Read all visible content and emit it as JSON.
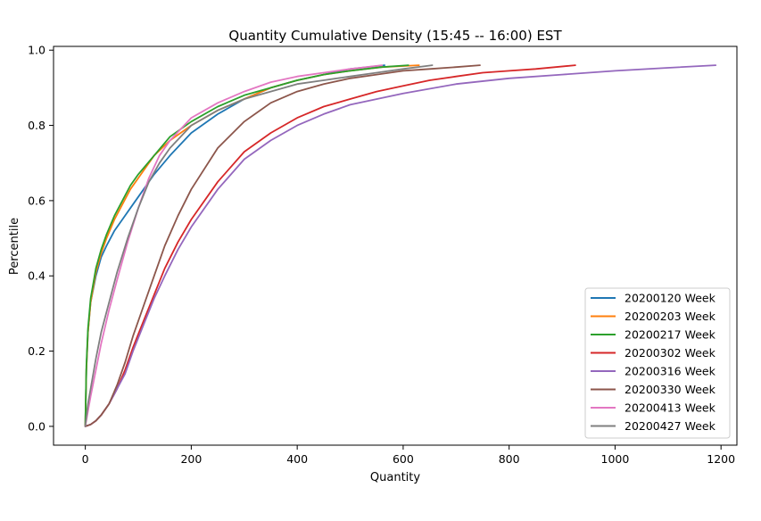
{
  "chart_data": {
    "type": "line",
    "title": "Quantity Cumulative Density  (15:45 -- 16:00) EST",
    "xlabel": "Quantity",
    "ylabel": "Percentile",
    "xlim": [
      -60,
      1230
    ],
    "ylim": [
      -0.05,
      1.01
    ],
    "xticks": [
      0,
      200,
      400,
      600,
      800,
      1000,
      1200
    ],
    "xtick_labels": [
      "0",
      "200",
      "400",
      "600",
      "800",
      "1000",
      "1200"
    ],
    "yticks": [
      0.0,
      0.2,
      0.4,
      0.6,
      0.8,
      1.0
    ],
    "ytick_labels": [
      "0.0",
      "0.2",
      "0.4",
      "0.6",
      "0.8",
      "1.0"
    ],
    "grid": false,
    "legend_position": "lower-right",
    "series": [
      {
        "name": "20200120 Week",
        "color": "#1f77b4",
        "x": [
          0,
          2,
          5,
          10,
          20,
          30,
          40,
          55,
          70,
          85,
          100,
          130,
          160,
          200,
          250,
          300,
          350,
          400,
          450,
          500,
          565
        ],
        "y": [
          0,
          0.15,
          0.25,
          0.33,
          0.4,
          0.45,
          0.48,
          0.52,
          0.55,
          0.58,
          0.61,
          0.67,
          0.72,
          0.78,
          0.83,
          0.87,
          0.9,
          0.92,
          0.935,
          0.95,
          0.96
        ]
      },
      {
        "name": "20200203 Week",
        "color": "#ff7f0e",
        "x": [
          0,
          2,
          5,
          10,
          20,
          30,
          40,
          55,
          70,
          85,
          100,
          130,
          160,
          200,
          250,
          300,
          350,
          400,
          450,
          500,
          560,
          630
        ],
        "y": [
          0,
          0.15,
          0.25,
          0.33,
          0.41,
          0.46,
          0.5,
          0.55,
          0.59,
          0.63,
          0.66,
          0.72,
          0.76,
          0.8,
          0.84,
          0.87,
          0.9,
          0.92,
          0.935,
          0.945,
          0.955,
          0.96
        ]
      },
      {
        "name": "20200217 Week",
        "color": "#2ca02c",
        "x": [
          0,
          2,
          5,
          10,
          20,
          30,
          40,
          55,
          70,
          85,
          100,
          130,
          160,
          200,
          250,
          300,
          350,
          400,
          450,
          500,
          560,
          610
        ],
        "y": [
          0,
          0.16,
          0.26,
          0.34,
          0.42,
          0.47,
          0.51,
          0.56,
          0.6,
          0.64,
          0.67,
          0.72,
          0.77,
          0.81,
          0.85,
          0.88,
          0.9,
          0.92,
          0.935,
          0.945,
          0.955,
          0.96
        ]
      },
      {
        "name": "20200302 Week",
        "color": "#d62728",
        "x": [
          0,
          10,
          20,
          30,
          45,
          60,
          75,
          90,
          110,
          130,
          150,
          175,
          200,
          250,
          300,
          350,
          400,
          450,
          500,
          550,
          600,
          650,
          700,
          750,
          800,
          850,
          925
        ],
        "y": [
          0,
          0.005,
          0.015,
          0.03,
          0.06,
          0.1,
          0.15,
          0.21,
          0.28,
          0.35,
          0.42,
          0.49,
          0.55,
          0.65,
          0.73,
          0.78,
          0.82,
          0.85,
          0.87,
          0.89,
          0.905,
          0.92,
          0.93,
          0.94,
          0.945,
          0.95,
          0.96
        ]
      },
      {
        "name": "20200316 Week",
        "color": "#9467bd",
        "x": [
          0,
          10,
          20,
          30,
          45,
          60,
          75,
          90,
          110,
          130,
          150,
          175,
          200,
          250,
          300,
          350,
          400,
          450,
          500,
          600,
          700,
          800,
          900,
          1000,
          1100,
          1190
        ],
        "y": [
          0,
          0.005,
          0.015,
          0.03,
          0.06,
          0.1,
          0.14,
          0.2,
          0.27,
          0.34,
          0.4,
          0.47,
          0.53,
          0.63,
          0.71,
          0.76,
          0.8,
          0.83,
          0.855,
          0.885,
          0.91,
          0.925,
          0.935,
          0.945,
          0.953,
          0.96
        ]
      },
      {
        "name": "20200330 Week",
        "color": "#8c564b",
        "x": [
          0,
          10,
          20,
          30,
          45,
          60,
          75,
          90,
          110,
          130,
          150,
          175,
          200,
          250,
          300,
          350,
          400,
          450,
          500,
          550,
          600,
          650,
          700,
          745
        ],
        "y": [
          0,
          0.005,
          0.015,
          0.03,
          0.06,
          0.11,
          0.17,
          0.24,
          0.32,
          0.4,
          0.48,
          0.56,
          0.63,
          0.74,
          0.81,
          0.86,
          0.89,
          0.91,
          0.925,
          0.935,
          0.945,
          0.95,
          0.955,
          0.96
        ]
      },
      {
        "name": "20200413 Week",
        "color": "#e377c2",
        "x": [
          0,
          5,
          10,
          20,
          30,
          45,
          60,
          80,
          100,
          120,
          140,
          160,
          180,
          200,
          250,
          300,
          350,
          400,
          450,
          500,
          560
        ],
        "y": [
          0,
          0.04,
          0.08,
          0.15,
          0.22,
          0.31,
          0.39,
          0.49,
          0.58,
          0.66,
          0.72,
          0.76,
          0.79,
          0.82,
          0.86,
          0.89,
          0.915,
          0.93,
          0.94,
          0.95,
          0.96
        ]
      },
      {
        "name": "20200427 Week",
        "color": "#7f7f7f",
        "x": [
          0,
          5,
          10,
          20,
          30,
          45,
          60,
          80,
          100,
          120,
          140,
          160,
          180,
          200,
          250,
          300,
          350,
          400,
          450,
          500,
          550,
          600,
          655
        ],
        "y": [
          0,
          0.06,
          0.1,
          0.18,
          0.25,
          0.33,
          0.41,
          0.5,
          0.58,
          0.65,
          0.7,
          0.74,
          0.77,
          0.8,
          0.84,
          0.87,
          0.89,
          0.91,
          0.92,
          0.93,
          0.94,
          0.95,
          0.96
        ]
      }
    ]
  }
}
